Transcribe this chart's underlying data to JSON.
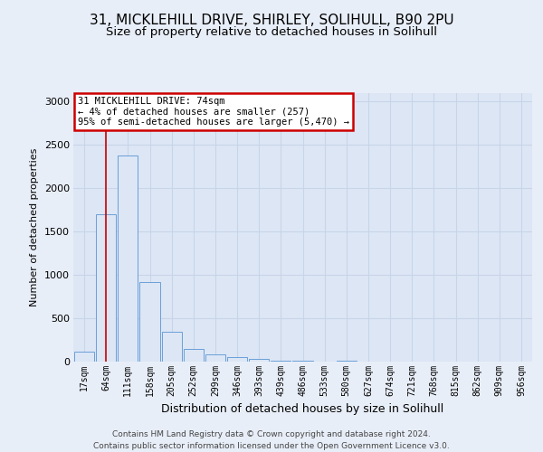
{
  "title1": "31, MICKLEHILL DRIVE, SHIRLEY, SOLIHULL, B90 2PU",
  "title2": "Size of property relative to detached houses in Solihull",
  "xlabel": "Distribution of detached houses by size in Solihull",
  "ylabel": "Number of detached properties",
  "categories": [
    "17sqm",
    "64sqm",
    "111sqm",
    "158sqm",
    "205sqm",
    "252sqm",
    "299sqm",
    "346sqm",
    "393sqm",
    "439sqm",
    "486sqm",
    "533sqm",
    "580sqm",
    "627sqm",
    "674sqm",
    "721sqm",
    "768sqm",
    "815sqm",
    "862sqm",
    "909sqm",
    "956sqm"
  ],
  "values": [
    110,
    1700,
    2380,
    920,
    340,
    150,
    80,
    55,
    30,
    10,
    10,
    0,
    10,
    0,
    0,
    0,
    0,
    0,
    0,
    0,
    0
  ],
  "bar_color": "#dce6f5",
  "bar_edge_color": "#6a9fd8",
  "annotation_text": "31 MICKLEHILL DRIVE: 74sqm\n← 4% of detached houses are smaller (257)\n95% of semi-detached houses are larger (5,470) →",
  "annotation_box_facecolor": "#ffffff",
  "annotation_box_edgecolor": "#cc0000",
  "ylim": [
    0,
    3100
  ],
  "yticks": [
    0,
    500,
    1000,
    1500,
    2000,
    2500,
    3000
  ],
  "footer_text": "Contains HM Land Registry data © Crown copyright and database right 2024.\nContains public sector information licensed under the Open Government Licence v3.0.",
  "bg_color": "#e8eef8",
  "plot_bg_color": "#dde6f5",
  "grid_color": "#c8d4e8",
  "title1_fontsize": 11,
  "title2_fontsize": 9.5,
  "ylabel_fontsize": 8,
  "xlabel_fontsize": 9
}
